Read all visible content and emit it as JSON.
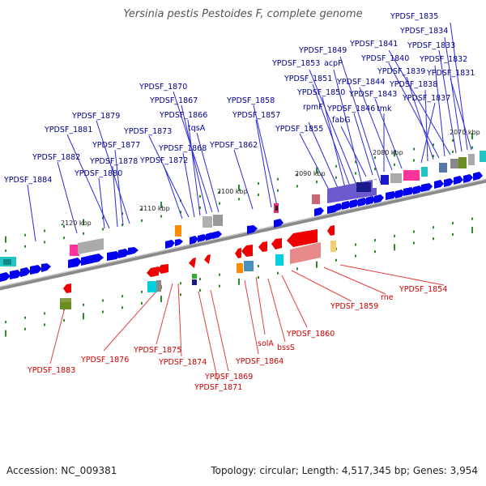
{
  "title": "Yersinia pestis Pestoides F, complete genome",
  "footer": {
    "accession": "Accession: NC_009381",
    "summary": "Topology: circular; Length: 4,517,345 bp; Genes: 3,954"
  },
  "colors": {
    "forward_gene": "#0000ee",
    "reverse_gene": "#ee0000",
    "forward_label": "#00008b",
    "reverse_label": "#cc0000",
    "backbone": "#777777",
    "tick": "#2e8b2e"
  },
  "scale_labels": [
    "2070 kbp",
    "2080 kbp",
    "2090 kbp",
    "2100 kbp",
    "2110 kbp",
    "2120 kbp"
  ],
  "forward_labels": [
    "YPDSF_1835",
    "YPDSF_1834",
    "YPDSF_1833",
    "YPDSF_1841",
    "YPDSF_1832",
    "YPDSF_1849",
    "YPDSF_1853",
    "acpP",
    "YPDSF_1840",
    "YPDSF_1839",
    "YPDSF_1831",
    "YPDSF_1851",
    "YPDSF_1844",
    "YPDSF_1838",
    "YPDSF_1870",
    "YPDSF_1850",
    "YPDSF_1843",
    "YPDSF_1837",
    "YPDSF_1867",
    "YPDSF_1858",
    "rpmF",
    "tmk",
    "YPDSF_1846",
    "YPDSF_1866",
    "YPDSF_1879",
    "YPDSF_1857",
    "fabG",
    "tqsA",
    "YPDSF_1881",
    "YPDSF_1873",
    "YPDSF_1855",
    "YPDSF_1877",
    "YPDSF_1862",
    "YPDSF_1868",
    "YPDSF_1882",
    "YPDSF_1878",
    "YPDSF_1872",
    "YPDSF_1880",
    "YPDSF_1884"
  ],
  "reverse_labels": [
    "YPDSF_1854",
    "rne",
    "YPDSF_1859",
    "YPDSF_1860",
    "solA",
    "bssS",
    "YPDSF_1876",
    "YPDSF_1875",
    "YPDSF_1874",
    "YPDSF_1864",
    "YPDSF_1883",
    "YPDSF_1869",
    "YPDSF_1871"
  ]
}
